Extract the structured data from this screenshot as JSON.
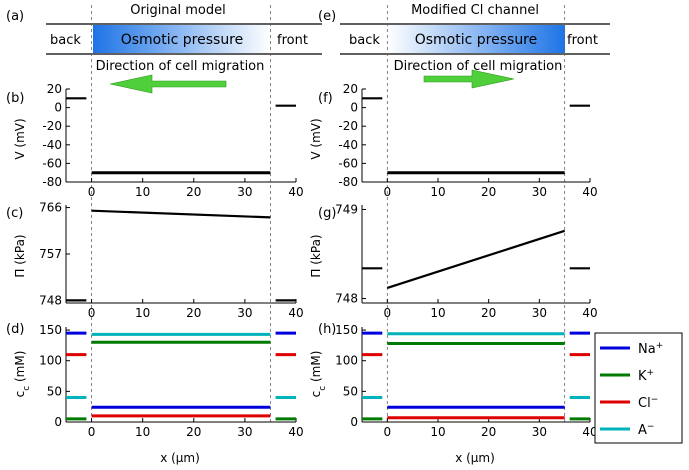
{
  "columns": [
    {
      "panel_header": "(a)",
      "title": "Original model",
      "back_label": "back",
      "front_label": "front",
      "box_label": "Osmotic pressure",
      "migration_label": "Direction of cell migration",
      "arrow_direction": "left",
      "box_gradient": [
        "#1e74e6",
        "#ffffff"
      ],
      "panels": [
        "(b)",
        "(c)",
        "(d)"
      ]
    },
    {
      "panel_header": "(e)",
      "title": "Modified Cl channel",
      "back_label": "back",
      "front_label": "front",
      "box_label": "Osmotic pressure",
      "migration_label": "Direction of cell migration",
      "arrow_direction": "right",
      "box_gradient": [
        "#ffffff",
        "#1e74e6"
      ],
      "panels": [
        "(f)",
        "(g)",
        "(h)"
      ]
    }
  ],
  "xlabel": "x (μm)",
  "legend": [
    {
      "base": "Na",
      "sup": "+",
      "color": "#0000dd"
    },
    {
      "base": "K",
      "sup": "+",
      "color": "#007a00"
    },
    {
      "base": "Cl",
      "sup": "−",
      "color": "#dd0000"
    },
    {
      "base": "A",
      "sup": "−",
      "color": "#00b3bb"
    }
  ],
  "colors": {
    "arrow": "#4fcf3a",
    "dashed": "#666666"
  },
  "chart_data": [
    {
      "type": "line",
      "column": 0,
      "panel": "(b)",
      "ylabel": "V (mV)",
      "xlim": [
        -5,
        40
      ],
      "ylim": [
        -80,
        20
      ],
      "xticks": [
        0,
        10,
        20,
        30,
        40
      ],
      "yticks": [
        20,
        0,
        -20,
        -40,
        -60,
        -80
      ],
      "series": [
        {
          "role": "outside-back",
          "color": "#000000",
          "x": [
            -5,
            -1
          ],
          "y": [
            10,
            10
          ]
        },
        {
          "role": "cell",
          "color": "#000000",
          "x": [
            0,
            35
          ],
          "y": [
            -70,
            -70
          ]
        },
        {
          "role": "outside-front",
          "color": "#000000",
          "x": [
            36,
            40
          ],
          "y": [
            2,
            2
          ]
        }
      ]
    },
    {
      "type": "line",
      "column": 0,
      "panel": "(c)",
      "ylabel": "Π (kPa)",
      "xlim": [
        -5,
        40
      ],
      "ylim": [
        747.5,
        766.5
      ],
      "xticks": [
        0,
        10,
        20,
        30,
        40
      ],
      "yticks": [
        766,
        757,
        748
      ],
      "series": [
        {
          "role": "outside-back",
          "color": "#000000",
          "x": [
            -5,
            -1
          ],
          "y": [
            748,
            748
          ]
        },
        {
          "role": "cell",
          "color": "#000000",
          "x": [
            0,
            35
          ],
          "y": [
            765.4,
            764.1
          ]
        },
        {
          "role": "outside-front",
          "color": "#000000",
          "x": [
            36,
            40
          ],
          "y": [
            748,
            748
          ]
        }
      ]
    },
    {
      "type": "line",
      "column": 0,
      "panel": "(d)",
      "ylabel": "c_c (mM)",
      "xlim": [
        -5,
        40
      ],
      "ylim": [
        0,
        155
      ],
      "xticks": [
        0,
        10,
        20,
        30,
        40
      ],
      "yticks": [
        150,
        100,
        50,
        0
      ],
      "series": [
        {
          "name": "Na+",
          "color": "#0000dd",
          "segments": [
            [
              [
                -5,
                145
              ],
              [
                -1,
                145
              ]
            ],
            [
              [
                0,
                24
              ],
              [
                35,
                24
              ]
            ],
            [
              [
                36,
                145
              ],
              [
                40,
                145
              ]
            ]
          ]
        },
        {
          "name": "K+",
          "color": "#007a00",
          "segments": [
            [
              [
                -5,
                5
              ],
              [
                -1,
                5
              ]
            ],
            [
              [
                0,
                130
              ],
              [
                35,
                130
              ]
            ],
            [
              [
                36,
                5
              ],
              [
                40,
                5
              ]
            ]
          ]
        },
        {
          "name": "Cl-",
          "color": "#dd0000",
          "segments": [
            [
              [
                -5,
                110
              ],
              [
                -1,
                110
              ]
            ],
            [
              [
                0,
                10
              ],
              [
                35,
                10
              ]
            ],
            [
              [
                36,
                110
              ],
              [
                40,
                110
              ]
            ]
          ]
        },
        {
          "name": "A-",
          "color": "#00b3bb",
          "segments": [
            [
              [
                -5,
                40
              ],
              [
                -1,
                40
              ]
            ],
            [
              [
                0,
                143
              ],
              [
                35,
                143
              ]
            ],
            [
              [
                36,
                40
              ],
              [
                40,
                40
              ]
            ]
          ]
        }
      ]
    },
    {
      "type": "line",
      "column": 1,
      "panel": "(f)",
      "ylabel": "V (mV)",
      "xlim": [
        -5,
        40
      ],
      "ylim": [
        -80,
        20
      ],
      "xticks": [
        0,
        10,
        20,
        30,
        40
      ],
      "yticks": [
        20,
        0,
        -20,
        -40,
        -60,
        -80
      ],
      "series": [
        {
          "role": "outside-back",
          "color": "#000000",
          "x": [
            -5,
            -1
          ],
          "y": [
            10,
            10
          ]
        },
        {
          "role": "cell",
          "color": "#000000",
          "x": [
            0,
            35
          ],
          "y": [
            -70,
            -70
          ]
        },
        {
          "role": "outside-front",
          "color": "#000000",
          "x": [
            36,
            40
          ],
          "y": [
            2,
            2
          ]
        }
      ]
    },
    {
      "type": "line",
      "column": 1,
      "panel": "(g)",
      "ylabel": "Π (kPa)",
      "xlim": [
        -5,
        40
      ],
      "ylim": [
        747.95,
        749.05
      ],
      "xticks": [
        0,
        10,
        20,
        30,
        40
      ],
      "yticks": [
        749,
        748
      ],
      "series": [
        {
          "role": "outside-back",
          "color": "#000000",
          "x": [
            -5,
            -1
          ],
          "y": [
            748.34,
            748.34
          ]
        },
        {
          "role": "cell",
          "color": "#000000",
          "x": [
            0,
            35
          ],
          "y": [
            748.12,
            748.76
          ]
        },
        {
          "role": "outside-front",
          "color": "#000000",
          "x": [
            36,
            40
          ],
          "y": [
            748.34,
            748.34
          ]
        }
      ]
    },
    {
      "type": "line",
      "column": 1,
      "panel": "(h)",
      "ylabel": "c_c (mM)",
      "xlim": [
        -5,
        40
      ],
      "ylim": [
        0,
        155
      ],
      "xticks": [
        0,
        10,
        20,
        30,
        40
      ],
      "yticks": [
        150,
        100,
        50,
        0
      ],
      "series": [
        {
          "name": "Na+",
          "color": "#0000dd",
          "segments": [
            [
              [
                -5,
                145
              ],
              [
                -1,
                145
              ]
            ],
            [
              [
                0,
                24
              ],
              [
                35,
                24
              ]
            ],
            [
              [
                36,
                145
              ],
              [
                40,
                145
              ]
            ]
          ]
        },
        {
          "name": "K+",
          "color": "#007a00",
          "segments": [
            [
              [
                -5,
                5
              ],
              [
                -1,
                5
              ]
            ],
            [
              [
                0,
                128
              ],
              [
                35,
                128
              ]
            ],
            [
              [
                36,
                5
              ],
              [
                40,
                5
              ]
            ]
          ]
        },
        {
          "name": "Cl-",
          "color": "#dd0000",
          "segments": [
            [
              [
                -5,
                110
              ],
              [
                -1,
                110
              ]
            ],
            [
              [
                0,
                7
              ],
              [
                35,
                7
              ]
            ],
            [
              [
                36,
                110
              ],
              [
                40,
                110
              ]
            ]
          ]
        },
        {
          "name": "A-",
          "color": "#00b3bb",
          "segments": [
            [
              [
                -5,
                40
              ],
              [
                -1,
                40
              ]
            ],
            [
              [
                0,
                144
              ],
              [
                35,
                144
              ]
            ],
            [
              [
                36,
                40
              ],
              [
                40,
                40
              ]
            ]
          ]
        }
      ]
    }
  ]
}
